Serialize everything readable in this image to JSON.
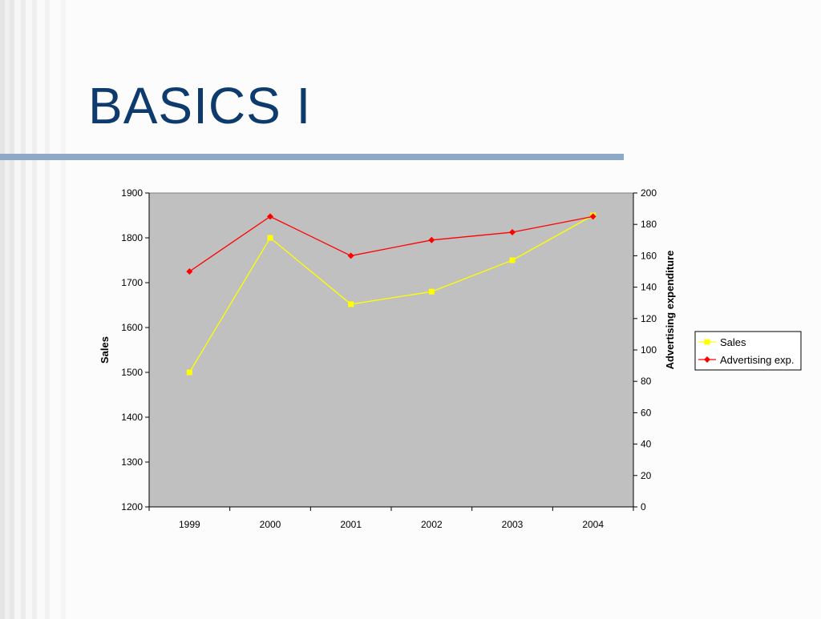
{
  "slide": {
    "title": "BASICS I"
  },
  "colors": {
    "title": "#0d3b6e",
    "rule": "#8ea8c8",
    "plot_background": "#c0c0c0",
    "sales_line": "#ffff00",
    "advertising_line": "#ff0000"
  },
  "chart_data": {
    "type": "line",
    "categories": [
      "1999",
      "2000",
      "2001",
      "2002",
      "2003",
      "2004"
    ],
    "series": [
      {
        "name": "Sales",
        "axis": "left",
        "marker": "square",
        "values": [
          1500,
          1800,
          1652,
          1680,
          1750,
          1850
        ]
      },
      {
        "name": "Advertising exp.",
        "axis": "right",
        "marker": "diamond",
        "values": [
          150,
          185,
          160,
          170,
          175,
          185
        ]
      }
    ],
    "ylabel_left": "Sales",
    "ylabel_right": "Advertising expenditure",
    "ylim_left": [
      1200,
      1900
    ],
    "yticks_left": [
      "1200",
      "1300",
      "1400",
      "1500",
      "1600",
      "1700",
      "1800",
      "1900"
    ],
    "ylim_right": [
      0,
      200
    ],
    "yticks_right": [
      "0",
      "20",
      "40",
      "60",
      "80",
      "100",
      "120",
      "140",
      "160",
      "180",
      "200"
    ],
    "grid": false,
    "legend_position": "right"
  }
}
